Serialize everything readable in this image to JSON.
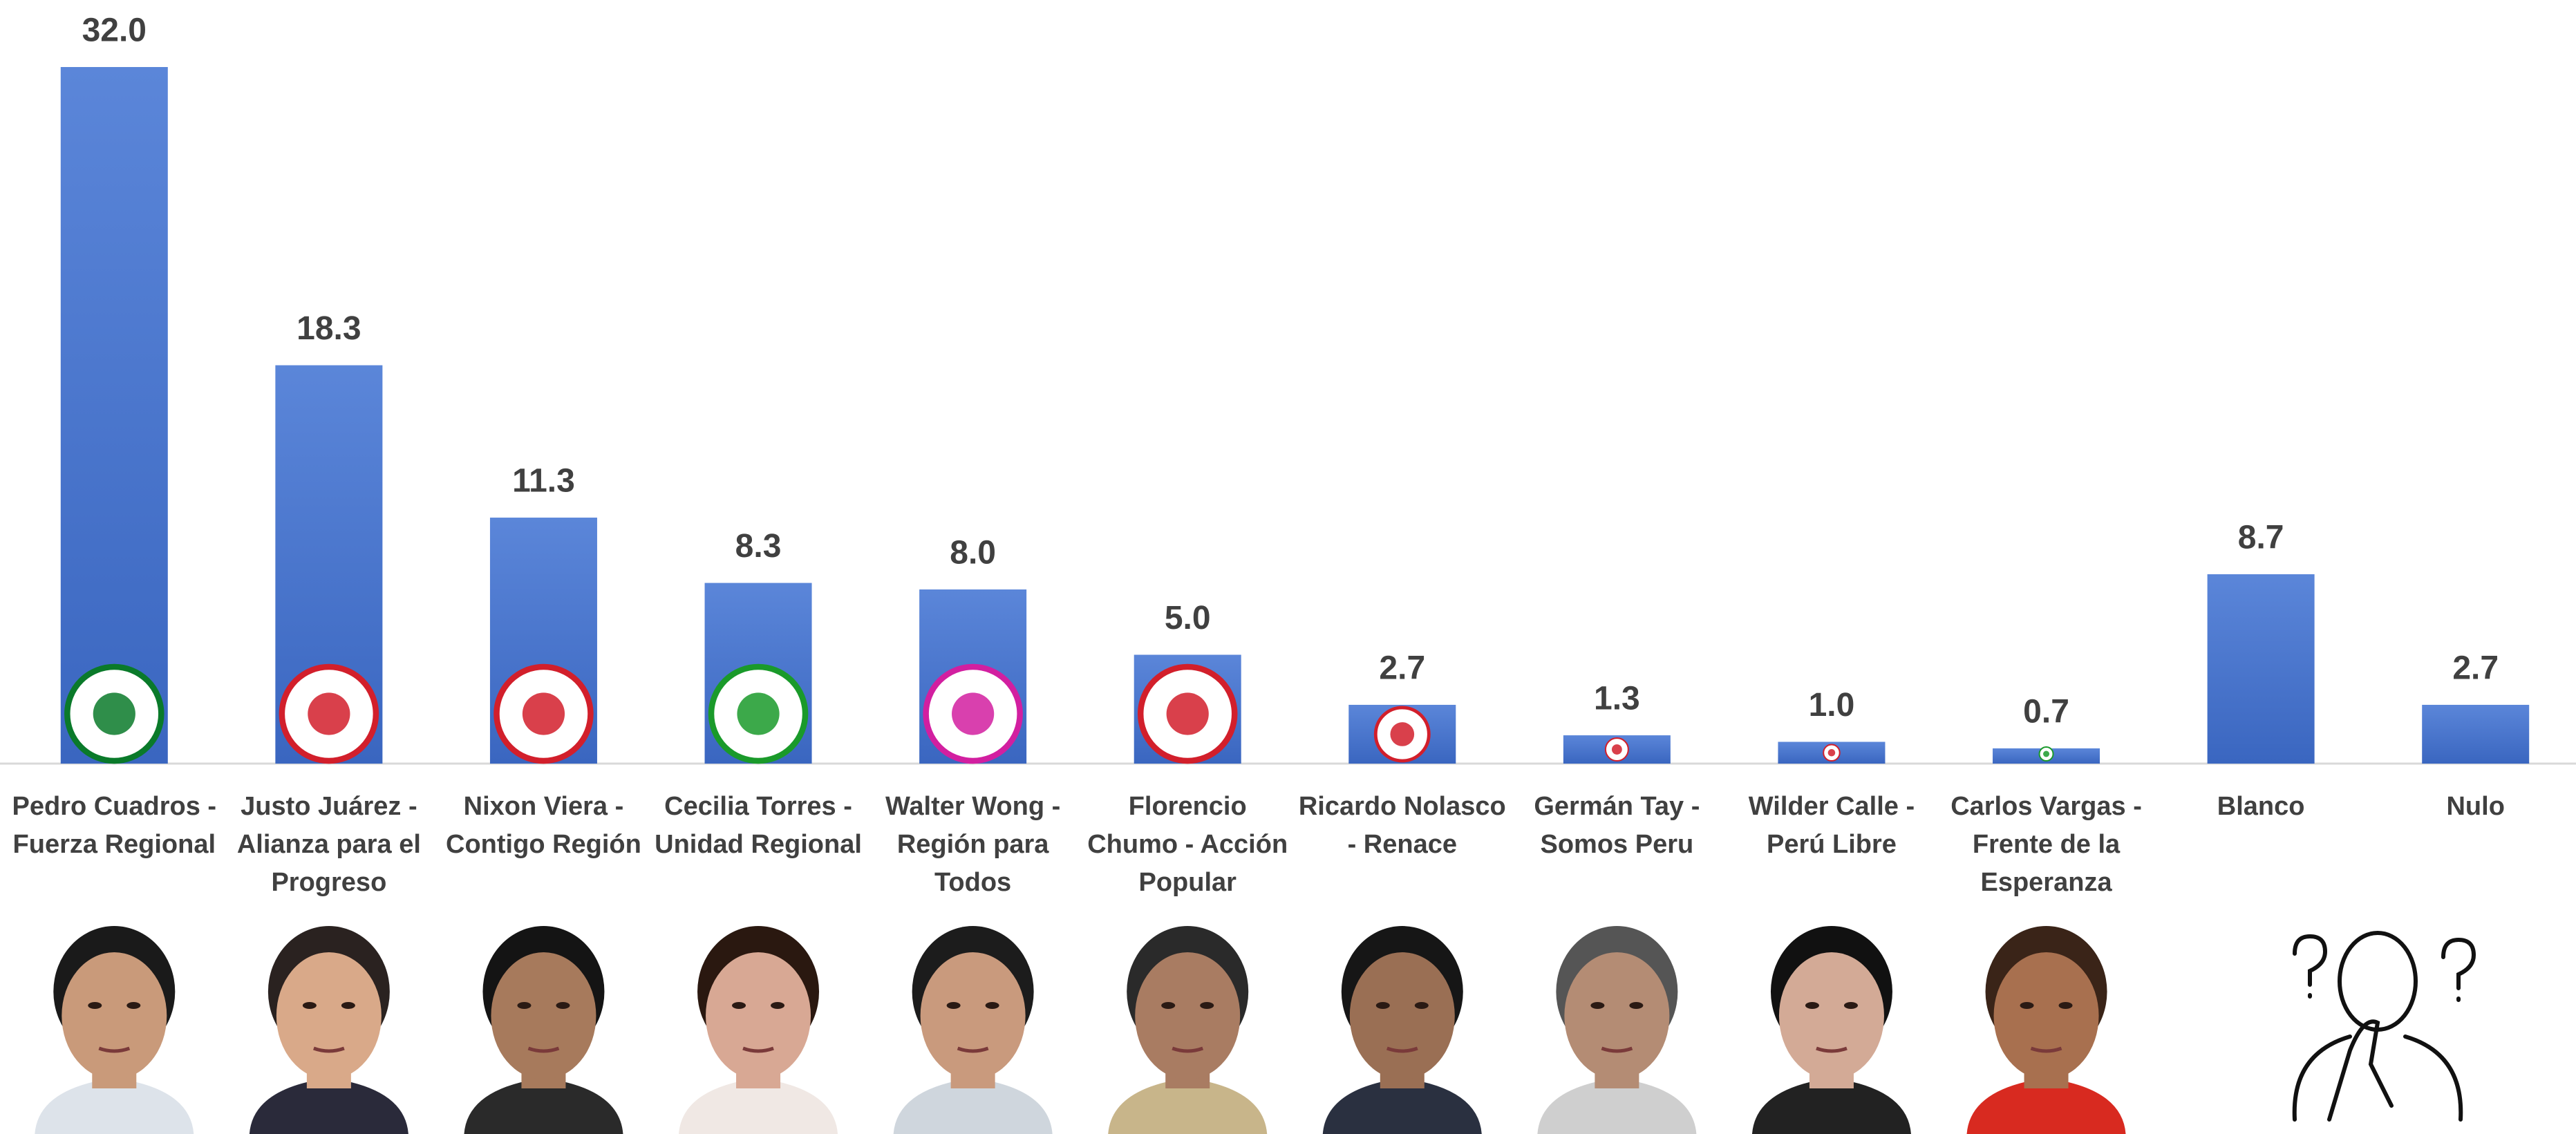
{
  "chart_data": {
    "type": "bar",
    "categories": [
      "Pedro Cuadros - Fuerza Regional",
      "Justo Juárez  - Alianza para el Progreso",
      "Nixon Viera - Contigo Región",
      "Cecilia Torres - Unidad Regional",
      "Walter Wong - Región para Todos",
      "Florencio Chumo - Acción Popular",
      "Ricardo Nolasco - Renace",
      "Germán Tay - Somos Peru",
      "Wilder Calle - Perú Libre",
      "Carlos Vargas - Frente de la Esperanza",
      "Blanco",
      "Nulo"
    ],
    "values": [
      32,
      18.3,
      11.3,
      8.3,
      8,
      5,
      2.7,
      1.3,
      1,
      0.7,
      8.7,
      2.7
    ],
    "value_labels": [
      "32.0",
      "18.3",
      "11.3",
      "8.3",
      "8.0",
      "5.0",
      "2.7",
      "1.3",
      "1.0",
      "0.7",
      "8.7",
      "2.7"
    ],
    "color": "#4472c4",
    "ylim": [
      0,
      32
    ]
  }
}
